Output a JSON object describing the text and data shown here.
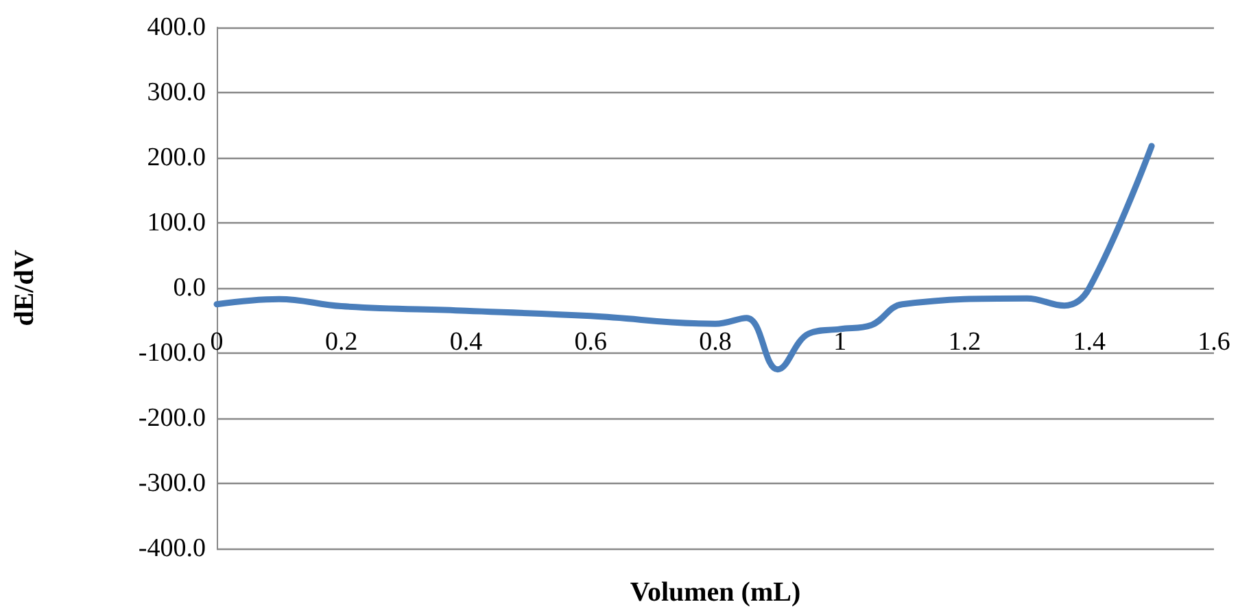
{
  "chart_data": {
    "type": "line",
    "xlabel": "Volumen (mL)",
    "ylabel": "dE/dV",
    "x": [
      0,
      0.1,
      0.2,
      0.4,
      0.6,
      0.8,
      0.85,
      0.9,
      0.95,
      1.0,
      1.05,
      1.1,
      1.3,
      1.36,
      1.4,
      1.5
    ],
    "series": [
      {
        "color": "#4a7ebb",
        "values": [
          -25,
          -17,
          -28,
          -35,
          -43,
          -55,
          -46,
          -125,
          -70,
          -63,
          -57,
          -25,
          -16,
          -27,
          0,
          218
        ]
      }
    ],
    "xlim": [
      0,
      1.6
    ],
    "xticks": [
      0,
      0.2,
      0.4,
      0.6,
      0.8,
      1,
      1.2,
      1.4,
      1.6
    ],
    "ylim": [
      -400,
      400
    ],
    "yticks": [
      {
        "value": -400,
        "label": "-400.0"
      },
      {
        "value": -300,
        "label": "-300.0"
      },
      {
        "value": -200,
        "label": "-200.0"
      },
      {
        "value": -100,
        "label": "-100.0"
      },
      {
        "value": 0,
        "label": "0.0"
      },
      {
        "value": 100,
        "label": "100.0"
      },
      {
        "value": 200,
        "label": "200.0"
      },
      {
        "value": 300,
        "label": "300.0"
      },
      {
        "value": 400,
        "label": "400.0"
      }
    ],
    "grid": "y",
    "marker": "none",
    "line_style": "solid"
  }
}
